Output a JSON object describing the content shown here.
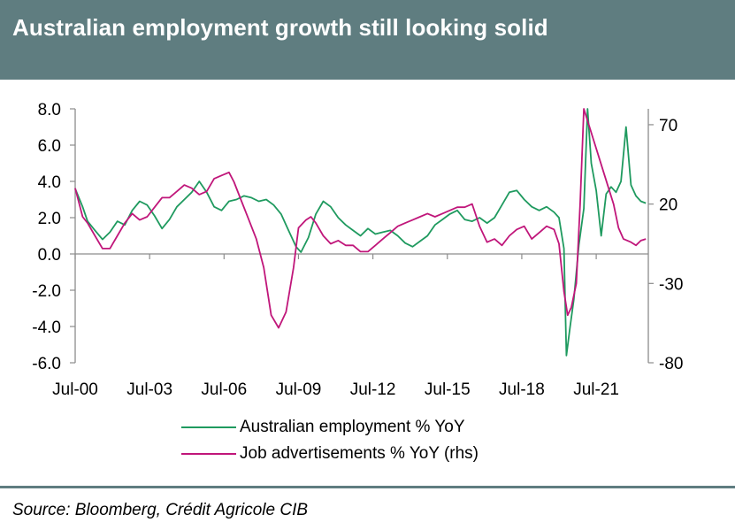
{
  "title": "Australian employment growth still looking solid",
  "source": "Source: Bloomberg, Crédit Agricole CIB",
  "legend": [
    {
      "label": "Australian employment % YoY",
      "color": "#1f9a5f"
    },
    {
      "label": "Job advertisements % YoY (rhs)",
      "color": "#c0167a"
    }
  ],
  "chart_data": {
    "type": "line",
    "x_ticks": [
      "Jul-00",
      "Jul-03",
      "Jul-06",
      "Jul-09",
      "Jul-12",
      "Jul-15",
      "Jul-18",
      "Jul-21"
    ],
    "x_tick_years": [
      2000.5,
      2003.5,
      2006.5,
      2009.5,
      2012.5,
      2015.5,
      2018.5,
      2021.5
    ],
    "xlim": [
      2000.5,
      2023.6
    ],
    "y_left": {
      "ticks": [
        "8.0",
        "6.0",
        "4.0",
        "2.0",
        "0.0",
        "-2.0",
        "-4.0",
        "-6.0"
      ],
      "ylim": [
        -6,
        8
      ]
    },
    "y_right": {
      "ticks": [
        "70",
        "20",
        "-30",
        "-80"
      ],
      "ylim": [
        -80,
        80
      ]
    },
    "series": [
      {
        "name": "Australian employment % YoY",
        "axis": "left",
        "color": "#1f9a5f",
        "x": [
          2000.5,
          2000.8,
          2001.0,
          2001.3,
          2001.6,
          2001.9,
          2002.2,
          2002.5,
          2002.8,
          2003.1,
          2003.4,
          2003.7,
          2004.0,
          2004.3,
          2004.6,
          2004.9,
          2005.2,
          2005.5,
          2005.8,
          2006.1,
          2006.4,
          2006.7,
          2007.0,
          2007.3,
          2007.6,
          2007.9,
          2008.2,
          2008.5,
          2008.8,
          2009.1,
          2009.4,
          2009.6,
          2009.9,
          2010.2,
          2010.5,
          2010.8,
          2011.1,
          2011.4,
          2011.7,
          2012.0,
          2012.3,
          2012.6,
          2012.9,
          2013.2,
          2013.5,
          2013.8,
          2014.1,
          2014.4,
          2014.7,
          2015.0,
          2015.3,
          2015.6,
          2015.9,
          2016.2,
          2016.5,
          2016.8,
          2017.1,
          2017.4,
          2017.7,
          2018.0,
          2018.3,
          2018.6,
          2018.9,
          2019.2,
          2019.5,
          2019.8,
          2020.0,
          2020.2,
          2020.3,
          2020.45,
          2020.6,
          2020.8,
          2021.0,
          2021.15,
          2021.3,
          2021.5,
          2021.7,
          2021.9,
          2022.1,
          2022.3,
          2022.5,
          2022.7,
          2022.9,
          2023.1,
          2023.3,
          2023.5
        ],
        "values": [
          3.6,
          2.6,
          1.8,
          1.3,
          0.8,
          1.2,
          1.8,
          1.6,
          2.4,
          2.9,
          2.7,
          2.1,
          1.4,
          1.9,
          2.6,
          3.0,
          3.4,
          4.0,
          3.4,
          2.6,
          2.4,
          2.9,
          3.0,
          3.2,
          3.1,
          2.9,
          3.0,
          2.7,
          2.2,
          1.3,
          0.4,
          0.1,
          0.9,
          2.2,
          2.9,
          2.6,
          2.0,
          1.6,
          1.3,
          1.0,
          1.4,
          1.1,
          1.2,
          1.3,
          1.0,
          0.6,
          0.4,
          0.7,
          1.0,
          1.6,
          1.9,
          2.2,
          2.4,
          1.9,
          1.8,
          2.0,
          1.7,
          2.0,
          2.7,
          3.4,
          3.5,
          3.0,
          2.6,
          2.4,
          2.6,
          2.3,
          2.0,
          0.3,
          -5.6,
          -4.0,
          -2.5,
          0.5,
          2.5,
          8.0,
          5.0,
          3.5,
          1.0,
          3.3,
          3.7,
          3.4,
          4.0,
          7.0,
          3.8,
          3.2,
          2.9,
          2.8
        ]
      },
      {
        "name": "Job advertisements % YoY (rhs)",
        "axis": "right",
        "color": "#c0167a",
        "x": [
          2000.5,
          2000.8,
          2001.0,
          2001.3,
          2001.6,
          2001.9,
          2002.2,
          2002.5,
          2002.8,
          2003.1,
          2003.4,
          2003.7,
          2004.0,
          2004.3,
          2004.6,
          2004.9,
          2005.2,
          2005.5,
          2005.8,
          2006.1,
          2006.4,
          2006.7,
          2006.9,
          2007.2,
          2007.5,
          2007.8,
          2008.1,
          2008.4,
          2008.7,
          2009.0,
          2009.3,
          2009.5,
          2009.8,
          2010.0,
          2010.2,
          2010.5,
          2010.8,
          2011.1,
          2011.4,
          2011.7,
          2012.0,
          2012.3,
          2012.6,
          2012.9,
          2013.2,
          2013.5,
          2013.8,
          2014.1,
          2014.4,
          2014.7,
          2015.0,
          2015.3,
          2015.6,
          2015.9,
          2016.2,
          2016.5,
          2016.8,
          2017.1,
          2017.4,
          2017.7,
          2018.0,
          2018.3,
          2018.6,
          2018.9,
          2019.2,
          2019.5,
          2019.8,
          2020.0,
          2020.2,
          2020.35,
          2020.5,
          2020.7,
          2020.85,
          2021.0,
          2021.2,
          2021.4,
          2021.6,
          2021.8,
          2022.0,
          2022.2,
          2022.4,
          2022.6,
          2022.9,
          2023.1,
          2023.3,
          2023.5
        ],
        "values": [
          30,
          12,
          8,
          0,
          -8,
          -8,
          0,
          8,
          14,
          10,
          12,
          18,
          24,
          24,
          28,
          32,
          30,
          26,
          28,
          36,
          38,
          40,
          34,
          22,
          10,
          -2,
          -20,
          -50,
          -58,
          -48,
          -20,
          5,
          10,
          12,
          8,
          0,
          -5,
          -3,
          -6,
          -6,
          -10,
          -10,
          -6,
          -2,
          2,
          6,
          8,
          10,
          12,
          14,
          12,
          14,
          16,
          18,
          18,
          20,
          6,
          -4,
          -2,
          -6,
          0,
          4,
          6,
          -2,
          2,
          6,
          4,
          -5,
          -35,
          -50,
          -45,
          -30,
          20,
          80,
          70,
          60,
          50,
          40,
          30,
          20,
          5,
          -2,
          -4,
          -6,
          -3,
          -2
        ]
      }
    ]
  }
}
